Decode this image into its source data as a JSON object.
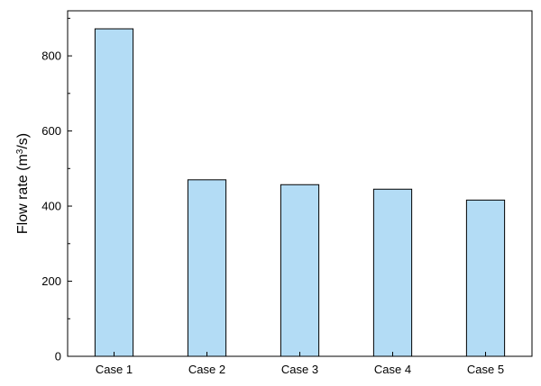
{
  "chart_data": {
    "type": "bar",
    "categories": [
      "Case 1",
      "Case 2",
      "Case 3",
      "Case 4",
      "Case 5"
    ],
    "values": [
      872,
      470,
      457,
      445,
      416
    ],
    "xlabel": "",
    "ylabel": {
      "prefix": "Flow rate (m",
      "sup": "3",
      "suffix": "/s)"
    },
    "ylim": [
      0,
      920
    ],
    "yticks": [
      0,
      200,
      400,
      600,
      800
    ],
    "bar_color": "#b3dcf5",
    "bar_edge_color": "#000000",
    "grid": false,
    "legend": "none"
  }
}
